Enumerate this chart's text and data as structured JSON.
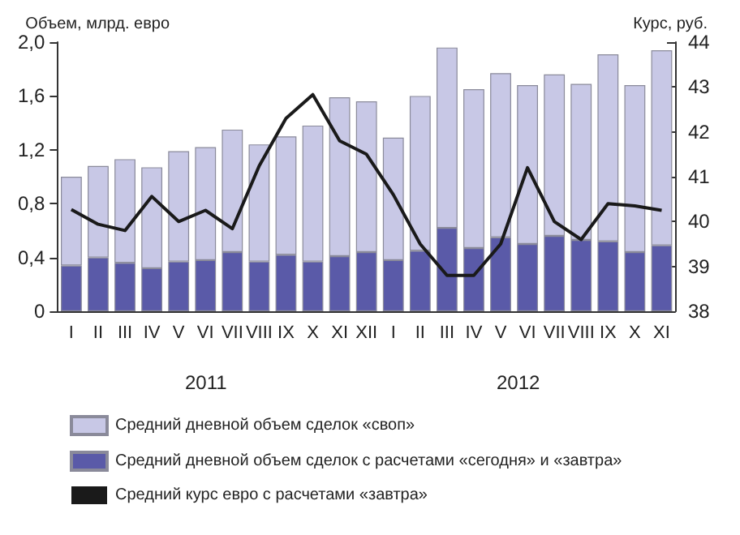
{
  "chart_data": {
    "type": "bar",
    "stacked": true,
    "ylabel": "Объем, млрд. евро",
    "y2label": "Курс, руб.",
    "categories": [
      "I",
      "II",
      "III",
      "IV",
      "V",
      "VI",
      "VII",
      "VIII",
      "IX",
      "X",
      "XI",
      "XII",
      "I",
      "II",
      "III",
      "IV",
      "V",
      "VI",
      "VII",
      "VIII",
      "IX",
      "X",
      "XI"
    ],
    "series": [
      {
        "name": "Средний дневной объем сделок с расчетами «сегодня» и «завтра»",
        "color": "#5a5aa8",
        "values": [
          0.34,
          0.4,
          0.36,
          0.32,
          0.37,
          0.38,
          0.44,
          0.37,
          0.42,
          0.37,
          0.41,
          0.44,
          0.38,
          0.45,
          0.62,
          0.47,
          0.55,
          0.5,
          0.56,
          0.53,
          0.52,
          0.44,
          0.49
        ]
      },
      {
        "name": "Средний дневной объем сделок «своп»",
        "color": "#c8c8e6",
        "values": [
          0.66,
          0.68,
          0.77,
          0.75,
          0.82,
          0.84,
          0.91,
          0.87,
          0.88,
          1.01,
          1.18,
          1.12,
          0.91,
          1.15,
          1.34,
          1.18,
          1.22,
          1.18,
          1.2,
          1.16,
          1.39,
          1.24,
          1.45
        ]
      },
      {
        "name": "Средний курс евро с расчетами «завтра»",
        "type": "line",
        "axis": "y2",
        "color": "#1a1a1a",
        "values": [
          40.27,
          39.94,
          39.8,
          40.56,
          40.0,
          40.25,
          39.84,
          41.24,
          42.3,
          42.83,
          41.8,
          41.5,
          40.6,
          39.5,
          38.8,
          38.8,
          39.5,
          41.2,
          40.0,
          39.6,
          40.4,
          40.35,
          40.25
        ]
      }
    ],
    "ylim": [
      0,
      2
    ],
    "yticks": [
      0,
      {
        "value": 0.4,
        "label": "0,4"
      },
      {
        "value": 0.8,
        "label": "0,8"
      },
      {
        "value": 1.2,
        "label": "1,2"
      },
      {
        "value": 1.6,
        "label": "1,6"
      },
      {
        "value": 2,
        "label": "2,0"
      }
    ],
    "y2lim": [
      38,
      44
    ],
    "y2ticks": [
      38,
      39,
      40,
      41,
      42,
      43,
      44
    ],
    "annotations": [
      "2011",
      "2012"
    ],
    "grid": false,
    "legend": "bottom left",
    "marker": "none",
    "line_style": "solid"
  }
}
